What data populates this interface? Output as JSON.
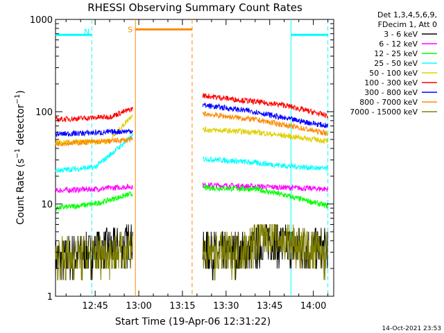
{
  "chart_data": {
    "type": "line",
    "title": "RHESSI Observing Summary Count Rates",
    "xlabel": "Start Time (19-Apr-06 12:31:22)",
    "ylabel": "Count Rate (s^-1 detector^-1)",
    "ylabel_parts": {
      "main": "Count Rate (s",
      "sup1": "−1",
      "mid": " detector",
      "sup2": "−1",
      "end": ")"
    },
    "y_scale": "log",
    "ylim": [
      1,
      1000
    ],
    "xlim": [
      "12:31:22",
      "14:07:00"
    ],
    "x_ticks": [
      "12:45",
      "13:00",
      "13:15",
      "13:30",
      "13:45",
      "14:00"
    ],
    "y_ticks": [
      "1",
      "10",
      "100",
      "1000"
    ],
    "grid": false,
    "legend_position": "right-top",
    "legend_header": [
      "Det 1,3,4,5,6,9,",
      "FDecim 1, Att 0"
    ],
    "timestamp": "14-Oct-2021 23:53",
    "series": [
      {
        "name": "3 - 6 keV",
        "color": "#000000",
        "points": [
          [
            "12:31:22",
            2.5
          ],
          [
            "12:55:00",
            3.5
          ],
          [
            "12:58:00",
            4.0
          ]
        ],
        "second_segment": [
          [
            "13:22:00",
            3.0
          ],
          [
            "13:38:00",
            3.0
          ],
          [
            "13:45:00",
            4.2
          ],
          [
            "13:50:00",
            3.5
          ],
          [
            "14:05:00",
            3.2
          ]
        ]
      },
      {
        "name": "6 - 12 keV",
        "color": "#ff00ff",
        "points": [
          [
            "12:31:22",
            14
          ],
          [
            "12:45:00",
            14.5
          ],
          [
            "12:58:00",
            15.5
          ]
        ],
        "second_segment": [
          [
            "13:22:00",
            16
          ],
          [
            "13:40:00",
            15.5
          ],
          [
            "14:05:00",
            14.5
          ]
        ]
      },
      {
        "name": "12 - 25 keV",
        "color": "#00ff00",
        "points": [
          [
            "12:31:22",
            9
          ],
          [
            "12:45:00",
            10
          ],
          [
            "12:58:00",
            13
          ]
        ],
        "second_segment": [
          [
            "13:22:00",
            15
          ],
          [
            "13:40:00",
            14.5
          ],
          [
            "13:50:00",
            12.5
          ],
          [
            "14:05:00",
            9.5
          ]
        ]
      },
      {
        "name": "25 - 50 keV",
        "color": "#00ffff",
        "points": [
          [
            "12:31:22",
            23
          ],
          [
            "12:45:00",
            25
          ],
          [
            "12:58:00",
            55
          ]
        ],
        "second_segment": [
          [
            "13:22:00",
            31
          ],
          [
            "13:40:00",
            28
          ],
          [
            "13:50:00",
            26
          ],
          [
            "14:05:00",
            24
          ]
        ]
      },
      {
        "name": "50 - 100 keV",
        "color": "#e0d000",
        "points": [
          [
            "12:31:22",
            46
          ],
          [
            "12:50:00",
            48
          ],
          [
            "12:58:00",
            95
          ]
        ],
        "second_segment": [
          [
            "13:22:00",
            64
          ],
          [
            "13:40:00",
            60
          ],
          [
            "13:50:00",
            55
          ],
          [
            "14:05:00",
            48
          ]
        ]
      },
      {
        "name": "100 - 300 keV",
        "color": "#ff0000",
        "points": [
          [
            "12:31:22",
            82
          ],
          [
            "12:50:00",
            88
          ],
          [
            "12:58:00",
            108
          ]
        ],
        "second_segment": [
          [
            "13:22:00",
            150
          ],
          [
            "13:40:00",
            128
          ],
          [
            "13:50:00",
            118
          ],
          [
            "14:05:00",
            90
          ]
        ]
      },
      {
        "name": "300 - 800 keV",
        "color": "#0000ff",
        "points": [
          [
            "12:31:22",
            57
          ],
          [
            "12:50:00",
            60
          ],
          [
            "12:58:00",
            62
          ]
        ],
        "second_segment": [
          [
            "13:22:00",
            118
          ],
          [
            "13:40:00",
            100
          ],
          [
            "13:50:00",
            85
          ],
          [
            "14:05:00",
            70
          ]
        ]
      },
      {
        "name": "800 - 7000 keV",
        "color": "#ff8800",
        "points": [
          [
            "12:31:22",
            45
          ],
          [
            "12:50:00",
            48
          ],
          [
            "12:58:00",
            50
          ]
        ],
        "second_segment": [
          [
            "13:22:00",
            95
          ],
          [
            "13:40:00",
            82
          ],
          [
            "13:50:00",
            72
          ],
          [
            "14:05:00",
            58
          ]
        ]
      },
      {
        "name": "7000 - 15000 keV",
        "color": "#808000",
        "points": [
          [
            "12:31:22",
            2.5
          ],
          [
            "12:55:00",
            3.0
          ],
          [
            "12:58:00",
            4.0
          ]
        ],
        "second_segment": [
          [
            "13:22:00",
            2.8
          ],
          [
            "13:35:00",
            3.0
          ],
          [
            "13:45:00",
            5.0
          ],
          [
            "13:50:00",
            3.8
          ],
          [
            "14:05:00",
            2.8
          ]
        ]
      }
    ],
    "night_intervals": [
      {
        "label": "N",
        "color": "#00ffff",
        "start": "12:31:22",
        "end": "12:43:50"
      },
      {
        "label": "",
        "color": "#00ffff",
        "start": "13:52:20",
        "end": "14:05:00"
      }
    ],
    "saa_interval": {
      "label": "S",
      "color": "#ff8800",
      "start": "12:58:50",
      "end": "13:18:20"
    }
  }
}
